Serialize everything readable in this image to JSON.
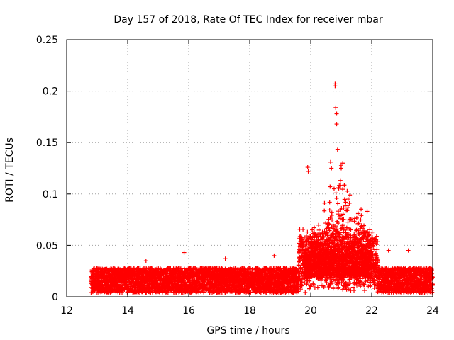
{
  "chart_data": {
    "type": "scatter",
    "title": "Day 157 of 2018, Rate Of TEC Index for receiver mbar",
    "xlabel": "GPS time / hours",
    "ylabel": "ROTI / TECUs",
    "xlim": [
      12,
      24
    ],
    "ylim": [
      0,
      0.25
    ],
    "xticks": [
      12,
      14,
      16,
      18,
      20,
      22,
      24
    ],
    "xtick_labels": [
      "12",
      "14",
      "16",
      "18",
      "20",
      "22",
      "24"
    ],
    "yticks": [
      0,
      0.05,
      0.1,
      0.15,
      0.2,
      0.25
    ],
    "ytick_labels": [
      "0",
      "0.05",
      "0.1",
      "0.15",
      "0.2",
      "0.25"
    ],
    "grid": true,
    "marker": "+",
    "series": [
      {
        "name": "ROTI",
        "color": "#ff0000",
        "x_range": [
          12.8,
          24.0
        ],
        "baseline_band": [
          0.004,
          0.028
        ],
        "notable_points": [
          {
            "x": 20.8,
            "y": 0.207
          },
          {
            "x": 20.8,
            "y": 0.205
          },
          {
            "x": 20.82,
            "y": 0.184
          },
          {
            "x": 20.85,
            "y": 0.178
          },
          {
            "x": 20.85,
            "y": 0.168
          },
          {
            "x": 20.88,
            "y": 0.143
          },
          {
            "x": 19.9,
            "y": 0.126
          },
          {
            "x": 19.92,
            "y": 0.122
          },
          {
            "x": 21.0,
            "y": 0.125
          },
          {
            "x": 21.05,
            "y": 0.13
          },
          {
            "x": 20.65,
            "y": 0.131
          },
          {
            "x": 20.68,
            "y": 0.125
          },
          {
            "x": 21.85,
            "y": 0.083
          },
          {
            "x": 15.85,
            "y": 0.043
          },
          {
            "x": 18.8,
            "y": 0.04
          },
          {
            "x": 22.55,
            "y": 0.045
          },
          {
            "x": 23.2,
            "y": 0.045
          },
          {
            "x": 14.6,
            "y": 0.035
          },
          {
            "x": 17.2,
            "y": 0.037
          }
        ]
      }
    ]
  }
}
